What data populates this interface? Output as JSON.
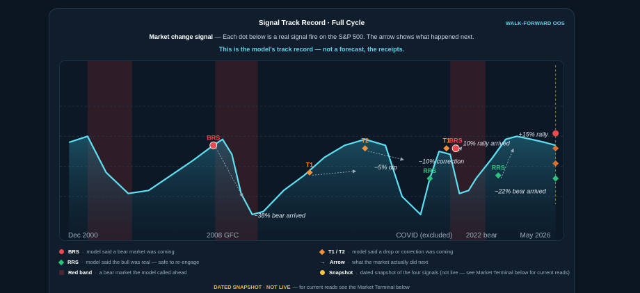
{
  "header": {
    "title": "Signal Track Record · Full Cycle",
    "badge": "WALK-FORWARD OOS",
    "subtitle_bold": "Market change signal",
    "subtitle_rest": " — Each dot below is a real signal fire on the S&P 500. The arrow shows what happened next.",
    "tagline": "This is the model's track record — not a forecast, the receipts."
  },
  "chart_data": {
    "type": "line",
    "title": "Signal Track Record · Full Cycle",
    "xlabel": "",
    "ylabel": "",
    "x": [
      2000.0,
      2001.0,
      2002.0,
      2003.2,
      2004.3,
      2005.5,
      2006.7,
      2007.8,
      2008.3,
      2008.8,
      2009.3,
      2009.9,
      2010.5,
      2011.6,
      2012.7,
      2013.8,
      2014.9,
      2016.0,
      2017.1,
      2018.0,
      2019.0,
      2019.5,
      2020.0,
      2020.6,
      2021.1,
      2021.6,
      2022.0,
      2022.9,
      2023.6,
      2024.2,
      2025.0,
      2025.7,
      2026.3
    ],
    "y": [
      58,
      60,
      48,
      41,
      42,
      47,
      52,
      57,
      59,
      54,
      41,
      34,
      35,
      42,
      47,
      53,
      57,
      59,
      57,
      40,
      34,
      46,
      55,
      54,
      41,
      42,
      46,
      53,
      59,
      60,
      59,
      58,
      57
    ],
    "xlim": [
      1999.5,
      2026.8
    ],
    "ylim": [
      25,
      85
    ],
    "tick_labels": [
      {
        "x": 2000,
        "label": "Dec 2000"
      },
      {
        "x": 2008.3,
        "label": "2008 GFC"
      },
      {
        "x": 2019.2,
        "label": "COVID (excluded)"
      },
      {
        "x": 2022.3,
        "label": "2022 bear"
      },
      {
        "x": 2025.2,
        "label": "May 2026"
      }
    ],
    "bear_bands": [
      [
        2001.0,
        2003.4
      ],
      [
        2007.9,
        2010.2
      ],
      [
        2020.6,
        2022.5
      ]
    ],
    "signals": [
      {
        "type": "BRS",
        "x": 2007.8,
        "y": 57,
        "label": "BRS",
        "color": "#e84a4f"
      },
      {
        "type": "T1",
        "x": 2013.0,
        "y": 48,
        "label": "T1",
        "color": "#f0913c"
      },
      {
        "type": "T2",
        "x": 2016.0,
        "y": 56,
        "label": "T2",
        "color": "#f0913c"
      },
      {
        "type": "RRS",
        "x": 2019.5,
        "y": 46,
        "label": "RRS",
        "color": "#2ec27e"
      },
      {
        "type": "T1",
        "x": 2020.4,
        "y": 56,
        "label": "T1",
        "color": "#f0913c"
      },
      {
        "type": "BRS",
        "x": 2020.9,
        "y": 56,
        "label": "BRS",
        "color": "#e84a4f"
      },
      {
        "type": "RRS",
        "x": 2023.2,
        "y": 47,
        "label": "RRS",
        "color": "#2ec27e"
      }
    ],
    "outcomes": [
      {
        "label": "−38% bear arrived",
        "x": 2010.0,
        "y": 33
      },
      {
        "label": "−5% dip",
        "x": 2016.5,
        "y": 49
      },
      {
        "label": "−10% correction",
        "x": 2018.9,
        "y": 51
      },
      {
        "label": "10% rally arrived",
        "x": 2021.3,
        "y": 57
      },
      {
        "label": "−22% bear arrived",
        "x": 2023.0,
        "y": 41
      },
      {
        "label": "+15% rally",
        "x": 2024.3,
        "y": 60
      }
    ],
    "snapshot": [
      {
        "y": 61,
        "color": "#e84a4f"
      },
      {
        "y": 56,
        "color": "#d9742e"
      },
      {
        "y": 51,
        "color": "#d9742e"
      },
      {
        "y": 46,
        "color": "#2ec27e"
      }
    ],
    "colors": {
      "line": "#5fe0f2",
      "band": "#3a1e28"
    }
  },
  "legend": {
    "brs_key": "BRS",
    "brs_desc": "model said a bear market was coming",
    "rrs_key": "RRS",
    "rrs_desc": "model said the bull was real — safe to re-engage",
    "band_key": "Red band",
    "band_desc": "a bear market the model called ahead",
    "t_key": "T1 / T2",
    "t_desc": "model said a drop or correction was coming",
    "arrow_key": "Arrow",
    "arrow_desc": "what the market actually did next",
    "snap_key": "Snapshot",
    "snap_desc": "dated snapshot of the four signals (not live — see Market Terminal below for current reads)"
  },
  "footer": {
    "key": "DATED SNAPSHOT · NOT LIVE",
    "rest": "— for current reads see the Market Terminal below"
  }
}
